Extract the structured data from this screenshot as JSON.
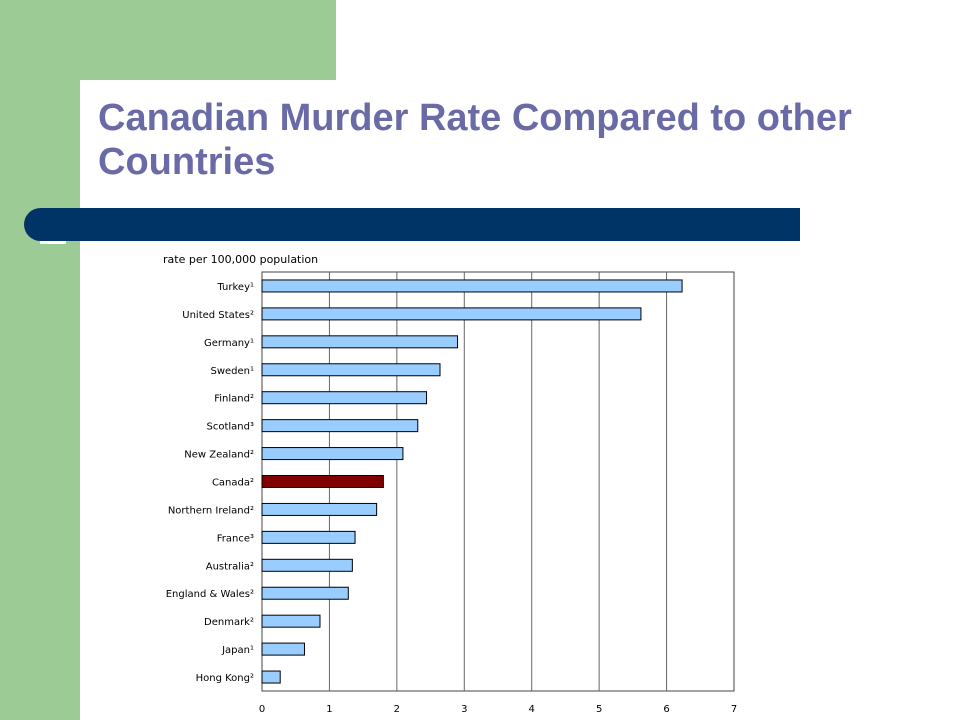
{
  "slide": {
    "title": "Canadian Murder Rate Compared to other Countries"
  },
  "colors": {
    "background_green": "#9ccb96",
    "title_color": "#6a6aa7",
    "title_bar": "#003366",
    "bar_default": "#99ccff",
    "bar_highlight": "#800000"
  },
  "chart_data": {
    "type": "bar",
    "orientation": "horizontal",
    "unit_label": "rate per 100,000 population",
    "categories": [
      "Turkey¹",
      "United States²",
      "Germany¹",
      "Sweden¹",
      "Finland²",
      "Scotland³",
      "New Zealand²",
      "Canada²",
      "Northern Ireland²",
      "France³",
      "Australia²",
      "England & Wales²",
      "Denmark²",
      "Japan¹",
      "Hong Kong²"
    ],
    "values": [
      6.23,
      5.62,
      2.9,
      2.64,
      2.44,
      2.31,
      2.09,
      1.8,
      1.7,
      1.38,
      1.34,
      1.28,
      0.86,
      0.63,
      0.27
    ],
    "highlight_category": "Canada²",
    "xlim": [
      0,
      7
    ],
    "xticks": [
      0,
      1,
      2,
      3,
      4,
      5,
      6,
      7
    ],
    "grid": "vertical",
    "legend": "none"
  }
}
